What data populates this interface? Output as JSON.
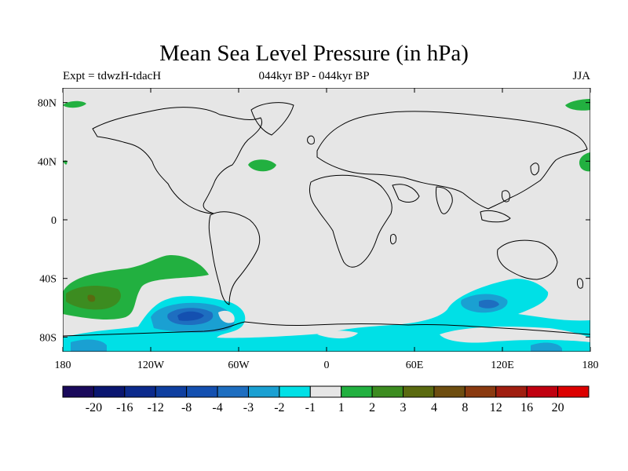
{
  "header": {
    "title": "Mean Sea Level Pressure (in hPa)",
    "expt": "Expt = tdwzH-tdacH",
    "period": "044kyr BP - 044kyr BP",
    "season": "JJA"
  },
  "axes": {
    "lat_labels": [
      "80N",
      "40N",
      "0",
      "40S",
      "80S"
    ],
    "lat_values": [
      80,
      40,
      0,
      -40,
      -80
    ],
    "lon_labels": [
      "180",
      "120W",
      "60W",
      "0",
      "60E",
      "120E",
      "180"
    ],
    "lon_values": [
      -180,
      -120,
      -60,
      0,
      60,
      120,
      180
    ]
  },
  "colorbar": {
    "labels": [
      "-20",
      "-16",
      "-12",
      "-8",
      "-4",
      "-3",
      "-2",
      "-1",
      "1",
      "2",
      "3",
      "4",
      "8",
      "12",
      "16",
      "20"
    ],
    "colors": [
      "#1a0a5c",
      "#0a1670",
      "#0c2a8c",
      "#0f3fa0",
      "#1450b0",
      "#1e6ec0",
      "#1aa0d2",
      "#00e0e6",
      "#e6e6e6",
      "#22b040",
      "#3c8c20",
      "#5a6a10",
      "#6e4e10",
      "#8a3a10",
      "#a01e10",
      "#c00010",
      "#dc0000"
    ]
  },
  "colors": {
    "background": "#e6e6e6",
    "coast": "#000000"
  }
}
